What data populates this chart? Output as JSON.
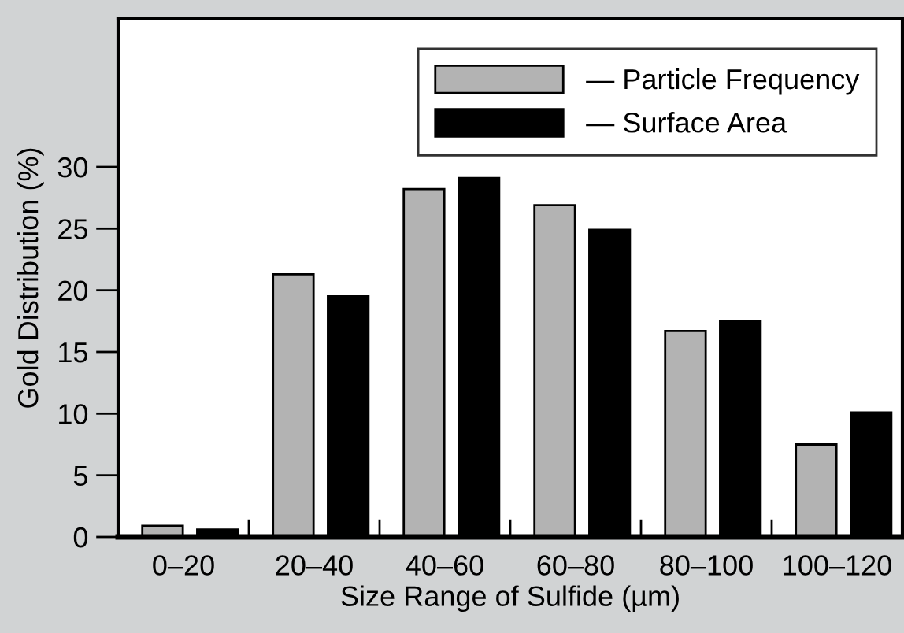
{
  "chart_data": {
    "type": "bar",
    "xlabel": "Size Range of Sulfide (µm)",
    "ylabel": "Gold Distribution (%)",
    "categories": [
      "0–20",
      "20–40",
      "40–60",
      "60–80",
      "80–100",
      "100–120"
    ],
    "series": [
      {
        "name": "— Particle Frequency",
        "color": "#b3b3b3",
        "values": [
          0.9,
          21.3,
          28.2,
          26.9,
          16.7,
          7.5
        ]
      },
      {
        "name": "— Surface Area",
        "color": "#000000",
        "values": [
          0.6,
          19.5,
          29.1,
          24.9,
          17.5,
          10.1
        ]
      }
    ],
    "ylim": [
      0,
      42
    ],
    "yticks": [
      0,
      5,
      10,
      15,
      20,
      25,
      30
    ],
    "grid": false,
    "legend": "top right"
  }
}
